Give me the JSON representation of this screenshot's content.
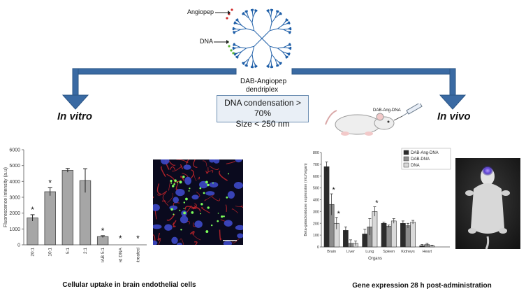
{
  "top": {
    "angiopep_label": "Angiopep",
    "dna_label": "DNA",
    "dendriplex_line1": "DAB-Angiopep",
    "dendriplex_line2": "dendriplex",
    "condensation": "DNA condensation > 70%",
    "size": "Size < 250 nm"
  },
  "left": {
    "title": "In vitro",
    "caption": "Cellular uptake in brain endothelial cells",
    "micrograph_scale": "scale bar"
  },
  "right": {
    "title": "In vivo",
    "mouse_label": "DAB-Ang-DNA",
    "caption": "Gene expression 28 h post-administration"
  },
  "chart_data": [
    {
      "type": "bar",
      "title": "",
      "xlabel": "",
      "ylabel": "Fluorescence intensity (a.u)",
      "ylim": [
        0,
        6000
      ],
      "yticks": [
        "0",
        "1000",
        "2000",
        "3000",
        "4000",
        "5000",
        "6000"
      ],
      "categories": [
        "20:1",
        "10:1",
        "5:1",
        "2:1",
        "DAB 5:1",
        "Naked DNA",
        "Untreated"
      ],
      "values": [
        1700,
        3350,
        4700,
        4050,
        520,
        0,
        0
      ],
      "errors": [
        200,
        250,
        120,
        750,
        60,
        0,
        0
      ],
      "significance": [
        "*",
        "*",
        "",
        "",
        "*",
        "*",
        "*"
      ]
    },
    {
      "type": "bar",
      "title": "",
      "xlabel": "Organs",
      "ylabel": "Beta-galactosidase expression (mU/organ)",
      "ylim": [
        0,
        800
      ],
      "yticks": [
        "0",
        "100",
        "200",
        "300",
        "400",
        "500",
        "600",
        "700",
        "800"
      ],
      "categories": [
        "Brain",
        "Liver",
        "Lung",
        "Spleen",
        "Kidneys",
        "Heart"
      ],
      "series": [
        {
          "name": "DAB-Ang-DNA",
          "color": "#2b2b2b",
          "values": [
            680,
            140,
            110,
            200,
            200,
            10
          ],
          "errors": [
            40,
            30,
            40,
            10,
            20,
            10
          ]
        },
        {
          "name": "DAB-DNA",
          "color": "#8c8c8c",
          "values": [
            360,
            30,
            170,
            175,
            180,
            20
          ],
          "errors": [
            90,
            30,
            70,
            10,
            20,
            10
          ]
        },
        {
          "name": "DNA",
          "color": "#d9d9d9",
          "values": [
            200,
            30,
            300,
            220,
            210,
            10
          ],
          "errors": [
            50,
            20,
            40,
            20,
            15,
            5
          ]
        }
      ],
      "significance": [
        {
          "category": "Brain",
          "series": "DAB-DNA",
          "mark": "*"
        },
        {
          "category": "Brain",
          "series": "DNA",
          "mark": "*"
        },
        {
          "category": "Lung",
          "series": "DNA",
          "mark": "*"
        }
      ]
    }
  ]
}
